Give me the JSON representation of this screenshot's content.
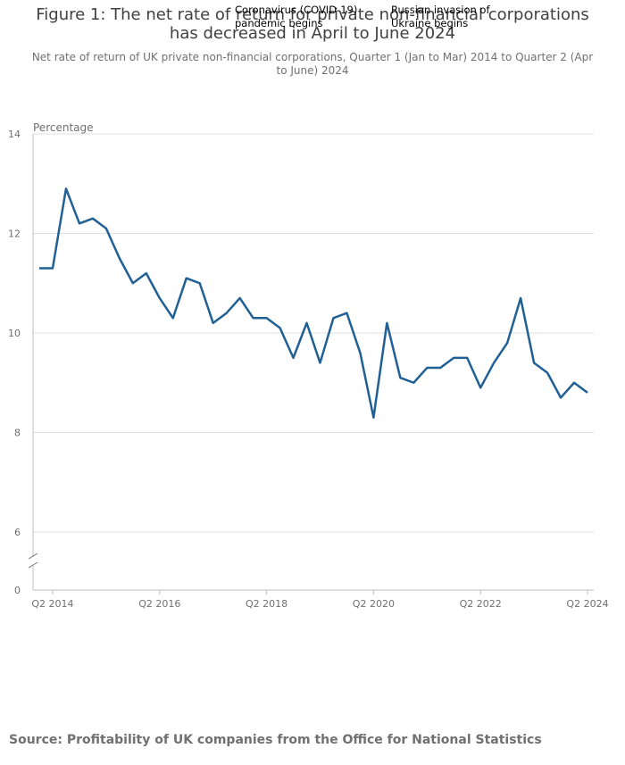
{
  "chart_data": {
    "type": "line",
    "title": "Figure 1: The net rate of return for private non-financial corporations has decreased in April to June 2024",
    "subtitle": "Net rate of return of UK private non-financial corporations, Quarter 1 (Jan to Mar) 2014 to Quarter 2 (Apr to June) 2024",
    "y_label": "Percentage",
    "annotations": [
      "Coronavirus (COVID-19) pandemic begins",
      "Russian invasion of Ukraine begins"
    ],
    "source": "Source: Profitability of UK companies from the Office for National Statistics",
    "categories": [
      null,
      "Q2 2014",
      null,
      null,
      null,
      null,
      null,
      null,
      null,
      "Q2 2016",
      null,
      null,
      null,
      null,
      null,
      null,
      null,
      "Q2 2018",
      null,
      null,
      null,
      null,
      null,
      null,
      null,
      "Q2 2020",
      null,
      null,
      null,
      null,
      null,
      null,
      null,
      "Q2 2022",
      null,
      null,
      null,
      null,
      null,
      null,
      null,
      "Q2 2024"
    ],
    "series": [
      {
        "name": "Net rate of return",
        "color": "#206095",
        "values": [
          11.3,
          11.3,
          12.9,
          12.2,
          12.3,
          12.1,
          11.5,
          11.0,
          11.2,
          10.7,
          10.3,
          11.1,
          11.0,
          10.2,
          10.4,
          10.7,
          10.3,
          10.3,
          10.1,
          9.5,
          10.2,
          9.4,
          10.3,
          10.4,
          9.6,
          8.3,
          10.2,
          9.1,
          9.0,
          9.3,
          9.3,
          9.5,
          9.5,
          8.9,
          9.4,
          9.8,
          10.7,
          9.4,
          9.2,
          8.7,
          9.0,
          8.8
        ]
      }
    ],
    "ylim": [
      0,
      14
    ],
    "yticks": [
      0,
      6,
      8,
      10,
      12,
      14
    ],
    "axis_break": true,
    "grid": true
  }
}
